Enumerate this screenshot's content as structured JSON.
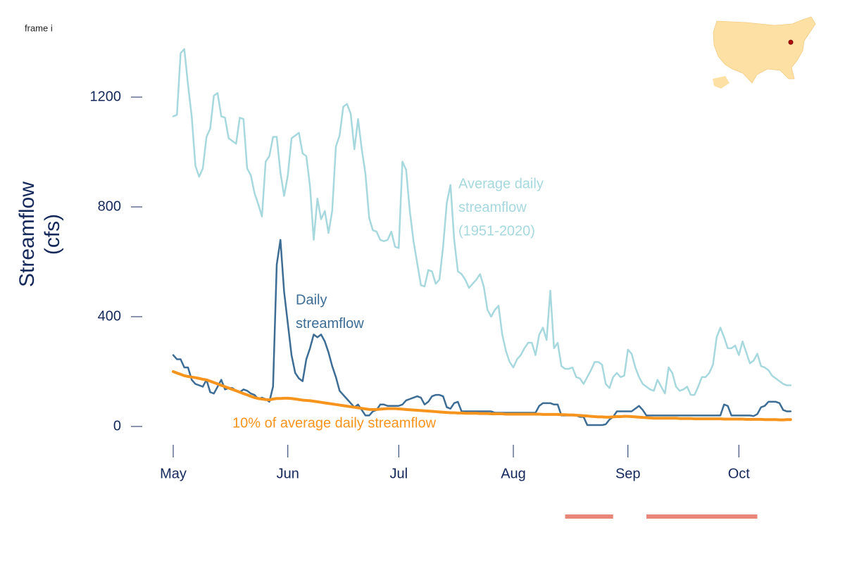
{
  "frame_label": "frame i",
  "chart_data": {
    "type": "line",
    "y_label": [
      "Streamflow",
      "(cfs)"
    ],
    "categories": [
      "May",
      null,
      null,
      null,
      null,
      null,
      null,
      null,
      null,
      null,
      null,
      null,
      null,
      null,
      null,
      null,
      null,
      null,
      null,
      null,
      null,
      null,
      null,
      null,
      null,
      null,
      null,
      null,
      null,
      null,
      null,
      "Jun",
      null,
      null,
      null,
      null,
      null,
      null,
      null,
      null,
      null,
      null,
      null,
      null,
      null,
      null,
      null,
      null,
      null,
      null,
      null,
      null,
      null,
      null,
      null,
      null,
      null,
      null,
      null,
      null,
      null,
      "Jul",
      null,
      null,
      null,
      null,
      null,
      null,
      null,
      null,
      null,
      null,
      null,
      null,
      null,
      null,
      null,
      null,
      null,
      null,
      null,
      null,
      null,
      null,
      null,
      null,
      null,
      null,
      null,
      null,
      null,
      null,
      "Aug",
      null,
      null,
      null,
      null,
      null,
      null,
      null,
      null,
      null,
      null,
      null,
      null,
      null,
      null,
      null,
      null,
      null,
      null,
      null,
      null,
      null,
      null,
      null,
      null,
      null,
      null,
      null,
      null,
      null,
      null,
      "Sep",
      null,
      null,
      null,
      null,
      null,
      null,
      null,
      null,
      null,
      null,
      null,
      null,
      null,
      null,
      null,
      null,
      null,
      null,
      null,
      null,
      null,
      null,
      null,
      null,
      null,
      null,
      null,
      null,
      null,
      "Oct",
      null,
      null,
      null,
      null,
      null,
      null,
      null,
      null,
      null,
      null,
      null,
      null,
      null,
      null
    ],
    "series": [
      {
        "name": [
          "Average daily",
          "streamflow",
          "(1951-2020)"
        ],
        "color": "#a6d8de",
        "width": 2.5,
        "values": [
          1130,
          1135,
          1360,
          1375,
          1245,
          1130,
          950,
          910,
          940,
          1055,
          1085,
          1205,
          1215,
          1130,
          1125,
          1050,
          1040,
          1030,
          1125,
          1120,
          940,
          915,
          850,
          810,
          765,
          965,
          985,
          1055,
          1055,
          925,
          840,
          915,
          1050,
          1060,
          1070,
          995,
          985,
          875,
          680,
          830,
          755,
          785,
          705,
          785,
          1020,
          1060,
          1165,
          1175,
          1140,
          1010,
          1120,
          1010,
          920,
          760,
          715,
          710,
          680,
          675,
          680,
          710,
          655,
          650,
          965,
          935,
          785,
          675,
          595,
          515,
          510,
          570,
          565,
          520,
          535,
          655,
          815,
          880,
          680,
          565,
          555,
          535,
          505,
          520,
          535,
          555,
          510,
          425,
          400,
          425,
          440,
          335,
          275,
          235,
          215,
          245,
          260,
          285,
          305,
          305,
          260,
          335,
          360,
          315,
          495,
          285,
          305,
          220,
          210,
          210,
          215,
          180,
          175,
          155,
          180,
          205,
          235,
          235,
          225,
          155,
          140,
          180,
          195,
          180,
          185,
          280,
          265,
          215,
          180,
          155,
          145,
          135,
          130,
          170,
          145,
          120,
          215,
          195,
          145,
          130,
          135,
          145,
          115,
          115,
          145,
          180,
          180,
          195,
          225,
          325,
          360,
          325,
          285,
          285,
          295,
          260,
          310,
          270,
          230,
          240,
          265,
          220,
          215,
          205,
          185,
          175,
          165,
          155,
          150,
          150
        ]
      },
      {
        "name": [
          "Daily",
          "streamflow"
        ],
        "color": "#3d6d95",
        "width": 2.5,
        "values": [
          260,
          245,
          245,
          215,
          215,
          170,
          155,
          150,
          145,
          170,
          125,
          120,
          145,
          170,
          135,
          140,
          140,
          130,
          125,
          135,
          130,
          120,
          115,
          100,
          105,
          100,
          90,
          145,
          590,
          680,
          490,
          375,
          260,
          195,
          175,
          165,
          245,
          285,
          335,
          325,
          335,
          310,
          270,
          220,
          180,
          130,
          115,
          100,
          85,
          70,
          80,
          60,
          40,
          40,
          55,
          60,
          80,
          80,
          75,
          75,
          75,
          75,
          80,
          95,
          100,
          105,
          110,
          105,
          80,
          90,
          110,
          115,
          115,
          110,
          70,
          65,
          85,
          90,
          55,
          55,
          55,
          55,
          55,
          55,
          55,
          55,
          55,
          50,
          50,
          50,
          50,
          50,
          50,
          50,
          50,
          50,
          50,
          50,
          50,
          75,
          85,
          85,
          85,
          80,
          80,
          40,
          40,
          40,
          40,
          40,
          35,
          35,
          5,
          5,
          5,
          5,
          5,
          8,
          25,
          35,
          55,
          55,
          55,
          55,
          55,
          65,
          75,
          60,
          40,
          40,
          40,
          40,
          40,
          40,
          40,
          40,
          40,
          40,
          40,
          40,
          40,
          40,
          40,
          40,
          40,
          40,
          40,
          40,
          40,
          80,
          75,
          40,
          40,
          40,
          40,
          40,
          40,
          38,
          45,
          70,
          75,
          90,
          90,
          90,
          85,
          60,
          55,
          55
        ]
      },
      {
        "name": [
          "10% of average daily streamflow"
        ],
        "color": "#f7941d",
        "width": 4,
        "values": [
          200,
          195,
          190,
          185,
          182,
          180,
          178,
          175,
          172,
          170,
          165,
          160,
          155,
          150,
          145,
          140,
          135,
          130,
          125,
          120,
          115,
          110,
          105,
          102,
          100,
          98,
          97,
          100,
          102,
          102,
          103,
          103,
          102,
          100,
          98,
          96,
          95,
          94,
          92,
          90,
          88,
          86,
          84,
          82,
          80,
          78,
          76,
          74,
          72,
          70,
          68,
          66,
          64,
          62,
          62,
          62,
          63,
          64,
          65,
          65,
          65,
          64,
          63,
          62,
          61,
          60,
          59,
          58,
          57,
          56,
          55,
          54,
          53,
          52,
          51,
          50,
          50,
          49,
          49,
          48,
          48,
          48,
          48,
          47,
          47,
          47,
          46,
          46,
          46,
          46,
          45,
          45,
          45,
          45,
          45,
          45,
          45,
          45,
          45,
          45,
          44,
          44,
          44,
          44,
          44,
          43,
          43,
          42,
          42,
          41,
          40,
          39,
          38,
          37,
          36,
          35,
          35,
          34,
          34,
          35,
          36,
          36,
          37,
          37,
          36,
          35,
          34,
          33,
          32,
          31,
          30,
          30,
          30,
          30,
          30,
          30,
          30,
          29,
          29,
          29,
          29,
          28,
          28,
          28,
          28,
          28,
          28,
          28,
          28,
          27,
          27,
          27,
          27,
          27,
          27,
          26,
          26,
          26,
          26,
          26,
          25,
          25,
          25,
          25,
          24,
          24,
          25,
          25
        ]
      }
    ],
    "ylim": [
      -100,
      1400
    ],
    "yticks": [
      0,
      400,
      800,
      1200
    ],
    "highlight_periods": [
      {
        "start": 106,
        "end": 119
      },
      {
        "start": 128,
        "end": 158
      }
    ],
    "highlight_color": "#e8867a",
    "axis_color": "#14285a",
    "grid": false
  }
}
